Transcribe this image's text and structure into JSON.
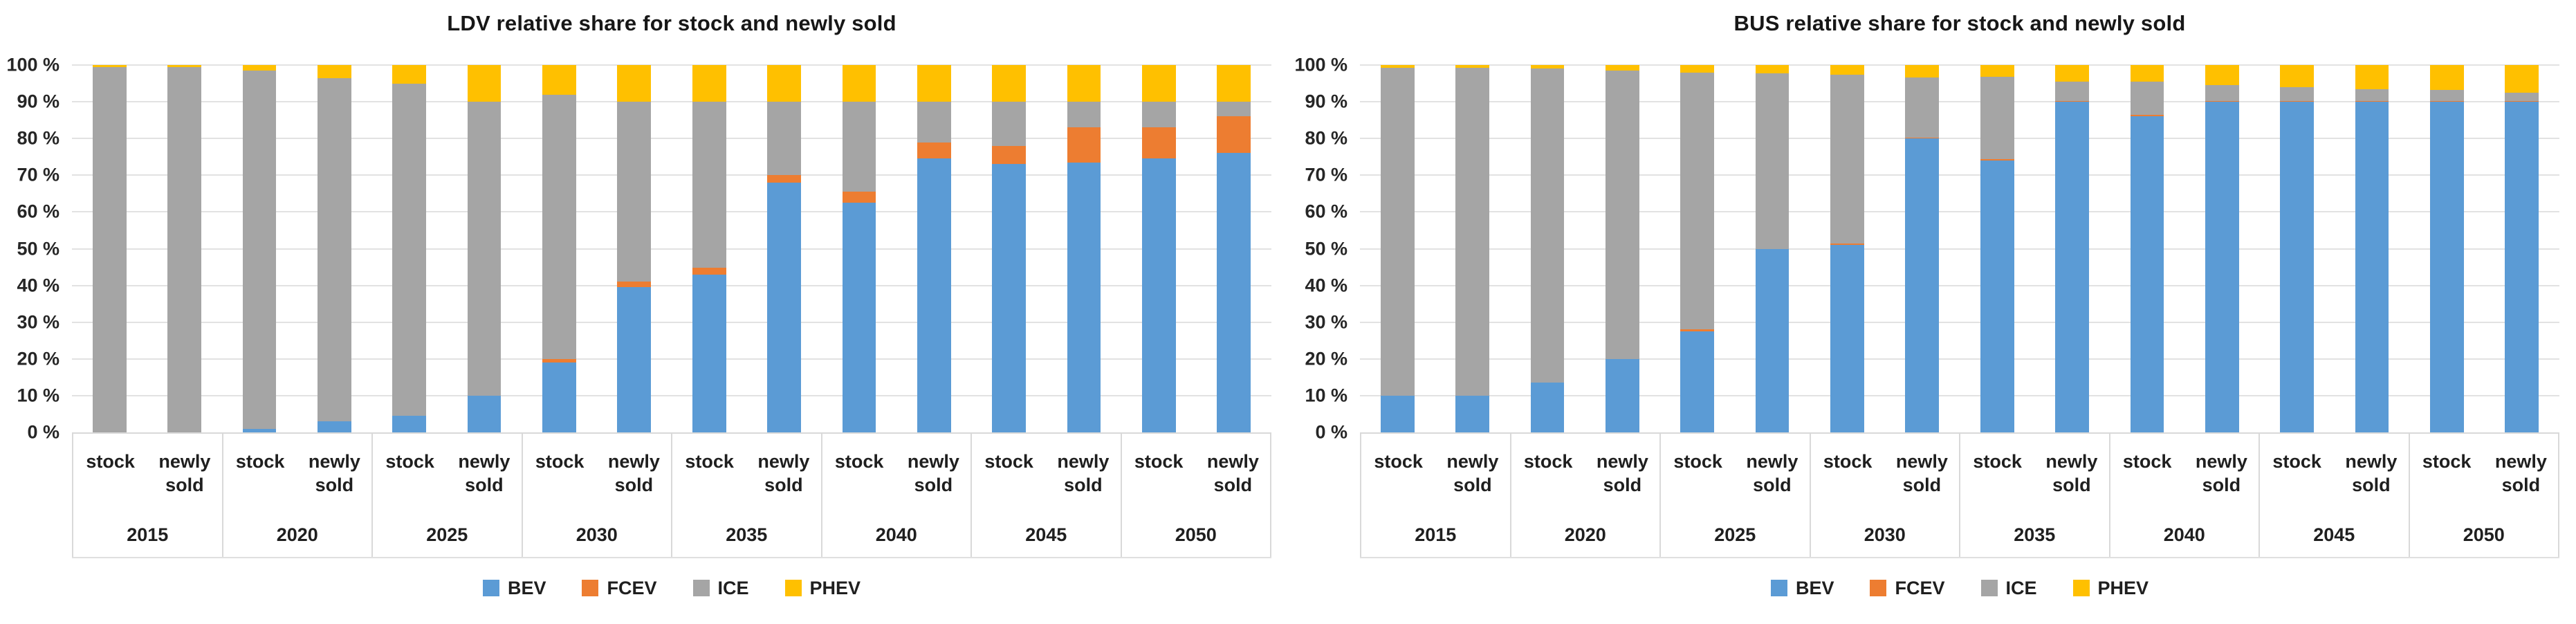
{
  "colors": {
    "bev": "#5B9BD5",
    "fcev": "#ED7D31",
    "ice": "#A5A5A5",
    "phev": "#FFC000",
    "gridline": "#E2E2E2",
    "axis_line": "#D9D9D9",
    "text": "#1F1F1F"
  },
  "chart_data": [
    {
      "type": "bar",
      "stacked": true,
      "title": "LDV relative share for stock and newly sold",
      "xlabel": "",
      "ylabel": "",
      "ylim": [
        0,
        100
      ],
      "grid": true,
      "legend_position": "bottom",
      "y_ticks": [
        "100 %",
        "90 %",
        "80 %",
        "70 %",
        "60 %",
        "50 %",
        "40 %",
        "30 %",
        "20 %",
        "10 %",
        "0 %"
      ],
      "years": [
        "2015",
        "2020",
        "2025",
        "2030",
        "2035",
        "2040",
        "2045",
        "2050"
      ],
      "bar_labels": [
        "stock",
        "newly sold"
      ],
      "categories": [
        "2015 stock",
        "2015 newly sold",
        "2020 stock",
        "2020 newly sold",
        "2025 stock",
        "2025 newly sold",
        "2030 stock",
        "2030 newly sold",
        "2035 stock",
        "2035 newly sold",
        "2040 stock",
        "2040 newly sold",
        "2045 stock",
        "2045 newly sold",
        "2050 stock",
        "2050 newly sold"
      ],
      "series": [
        {
          "name": "BEV",
          "color": "#5B9BD5",
          "values": [
            0,
            0,
            1,
            3,
            4.5,
            10,
            19,
            39.5,
            43,
            68,
            62.5,
            74.5,
            73,
            73.5,
            74.5,
            76
          ]
        },
        {
          "name": "FCEV",
          "color": "#ED7D31",
          "values": [
            0,
            0,
            0,
            0,
            0,
            0,
            1,
            1.5,
            1.8,
            2,
            3,
            4.5,
            5,
            9.5,
            8.5,
            10
          ]
        },
        {
          "name": "ICE",
          "color": "#A5A5A5",
          "values": [
            99.5,
            99.5,
            97.5,
            93.5,
            90.5,
            80,
            72,
            49,
            45.2,
            20,
            24.5,
            11,
            12,
            7,
            7,
            4
          ]
        },
        {
          "name": "PHEV",
          "color": "#FFC000",
          "values": [
            0.5,
            0.5,
            1.5,
            3.5,
            5,
            10,
            8,
            10,
            10,
            10,
            10,
            10,
            10,
            10,
            10,
            10
          ]
        }
      ]
    },
    {
      "type": "bar",
      "stacked": true,
      "title": "BUS relative share for stock and newly sold",
      "xlabel": "",
      "ylabel": "",
      "ylim": [
        0,
        100
      ],
      "grid": true,
      "legend_position": "bottom",
      "y_ticks": [
        "100 %",
        "90 %",
        "80 %",
        "70 %",
        "60 %",
        "50 %",
        "40 %",
        "30 %",
        "20 %",
        "10 %",
        "0 %"
      ],
      "years": [
        "2015",
        "2020",
        "2025",
        "2030",
        "2035",
        "2040",
        "2045",
        "2050"
      ],
      "bar_labels": [
        "stock",
        "newly sold"
      ],
      "categories": [
        "2015 stock",
        "2015 newly sold",
        "2020 stock",
        "2020 newly sold",
        "2025 stock",
        "2025 newly sold",
        "2030 stock",
        "2030 newly sold",
        "2035 stock",
        "2035 newly sold",
        "2040 stock",
        "2040 newly sold",
        "2045 stock",
        "2045 newly sold",
        "2050 stock",
        "2050 newly sold"
      ],
      "series": [
        {
          "name": "BEV",
          "color": "#5B9BD5",
          "values": [
            10,
            10,
            13.5,
            20,
            27.5,
            50,
            51,
            80,
            74,
            90,
            86,
            90,
            90,
            90,
            90,
            90
          ]
        },
        {
          "name": "FCEV",
          "color": "#ED7D31",
          "values": [
            0,
            0,
            0,
            0,
            0.5,
            0,
            0.5,
            0.3,
            0.3,
            0.3,
            0.5,
            0.3,
            0.3,
            0.3,
            0.3,
            0.3
          ]
        },
        {
          "name": "ICE",
          "color": "#A5A5A5",
          "values": [
            89.2,
            89.2,
            85.5,
            78.5,
            70,
            47.8,
            45.8,
            16.3,
            22.5,
            5.2,
            8.9,
            4.2,
            3.7,
            3.2,
            2.9,
            2.2
          ]
        },
        {
          "name": "PHEV",
          "color": "#FFC000",
          "values": [
            0.8,
            0.8,
            1,
            1.5,
            2,
            2.2,
            2.7,
            3.4,
            3.2,
            4.5,
            4.6,
            5.5,
            6,
            6.5,
            6.8,
            7.5
          ]
        }
      ]
    }
  ]
}
